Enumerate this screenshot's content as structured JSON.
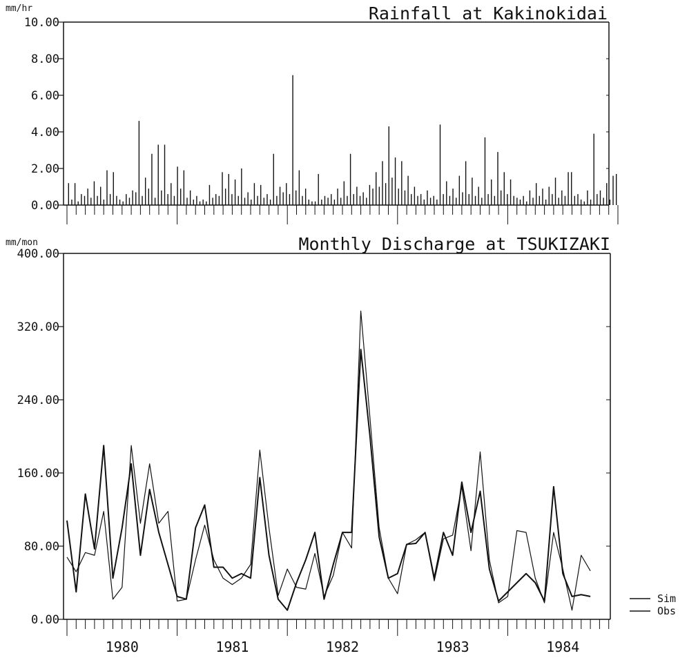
{
  "chart_data": [
    {
      "type": "bar",
      "title": "Rainfall at Kakinokidai",
      "ylabel": "mm/hr",
      "ylim": [
        0,
        10
      ],
      "yticks": [
        "0.00",
        "2.00",
        "4.00",
        "6.00",
        "8.00",
        "10.00"
      ],
      "x_range_months": [
        0,
        60
      ],
      "values": [
        1.2,
        0.3,
        1.2,
        0.2,
        0.6,
        0.5,
        0.9,
        0.4,
        1.3,
        0.5,
        1.0,
        0.3,
        1.9,
        0.6,
        1.8,
        0.5,
        0.3,
        0.2,
        0.6,
        0.4,
        0.8,
        0.7,
        4.6,
        0.5,
        1.5,
        0.9,
        2.8,
        0.4,
        3.3,
        0.8,
        3.3,
        0.6,
        1.2,
        0.5,
        2.1,
        0.9,
        1.9,
        0.4,
        0.8,
        0.3,
        0.5,
        0.2,
        0.3,
        0.2,
        1.1,
        0.4,
        0.6,
        0.5,
        1.8,
        0.9,
        1.7,
        0.6,
        1.4,
        0.5,
        2.0,
        0.4,
        0.7,
        0.3,
        1.2,
        0.5,
        1.1,
        0.4,
        0.6,
        0.3,
        2.8,
        0.5,
        1.0,
        0.7,
        1.2,
        0.6,
        7.1,
        0.8,
        1.9,
        0.5,
        0.9,
        0.3,
        0.2,
        0.2,
        1.7,
        0.3,
        0.5,
        0.4,
        0.6,
        0.3,
        0.9,
        0.4,
        1.3,
        0.5,
        2.8,
        0.6,
        1.0,
        0.5,
        0.7,
        0.4,
        1.1,
        0.9,
        1.8,
        1.0,
        2.4,
        1.2,
        4.3,
        1.5,
        2.6,
        0.9,
        2.4,
        0.8,
        1.6,
        0.6,
        1.0,
        0.5,
        0.6,
        0.3,
        0.8,
        0.4,
        0.5,
        0.3,
        4.4,
        0.6,
        1.3,
        0.5,
        0.9,
        0.4,
        1.6,
        0.7,
        2.4,
        0.6,
        1.5,
        0.5,
        1.0,
        0.4,
        3.7,
        0.6,
        1.4,
        0.5,
        2.9,
        0.8,
        1.8,
        0.6,
        1.4,
        0.5,
        0.4,
        0.3,
        0.5,
        0.2,
        0.8,
        0.4,
        1.2,
        0.5,
        0.9,
        0.3,
        1.0,
        0.6,
        1.5,
        0.4,
        0.8,
        0.5,
        1.8,
        1.8,
        0.5,
        0.6,
        0.3,
        0.2,
        0.8,
        0.3,
        3.9,
        0.6,
        0.8,
        0.4,
        1.2,
        0.3,
        1.6,
        1.7
      ]
    },
    {
      "type": "line",
      "title": "Monthly Discharge at TSUKIZAKI",
      "ylabel": "mm/mon",
      "ylim": [
        0,
        400
      ],
      "yticks": [
        "0.00",
        "80.00",
        "160.00",
        "240.00",
        "320.00",
        "400.00"
      ],
      "year_labels": [
        "1980",
        "1981",
        "1982",
        "1983",
        "1984"
      ],
      "x_start_month": 0,
      "series": [
        {
          "name": "Sim",
          "values": [
            108,
            30,
            137,
            77,
            190,
            45,
            100,
            170,
            70,
            142,
            95,
            60,
            25,
            22,
            100,
            125,
            57,
            57,
            45,
            50,
            45,
            155,
            70,
            22,
            10,
            40,
            65,
            95,
            22,
            60,
            95,
            95,
            295,
            200,
            90,
            45,
            50,
            82,
            83,
            95,
            45,
            95,
            70,
            150,
            95,
            140,
            55,
            20,
            30,
            40,
            50,
            40,
            20,
            145,
            50,
            25,
            27,
            25
          ]
        },
        {
          "name": "Obs",
          "values": [
            68,
            52,
            73,
            70,
            118,
            22,
            35,
            190,
            105,
            170,
            105,
            118,
            20,
            22,
            65,
            103,
            65,
            45,
            38,
            45,
            60,
            185,
            100,
            26,
            55,
            35,
            33,
            72,
            25,
            48,
            95,
            78,
            337,
            220,
            100,
            45,
            28,
            82,
            87,
            95,
            42,
            88,
            92,
            145,
            75,
            183,
            65,
            18,
            25,
            97,
            95,
            45,
            18,
            95,
            55,
            10,
            70,
            53
          ]
        }
      ]
    }
  ]
}
